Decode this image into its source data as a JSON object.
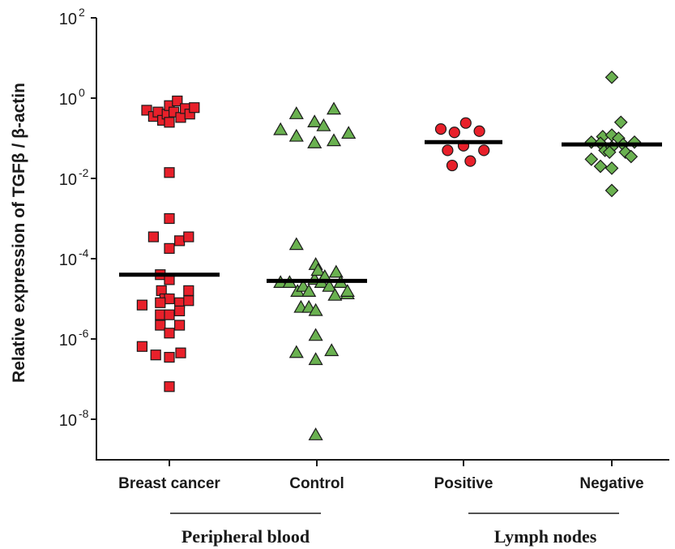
{
  "chart_data": {
    "type": "scatter",
    "ylabel": "Relative expression of TGFβ / β-actin",
    "y_scale": "log",
    "ylim": [
      1e-09,
      100.0
    ],
    "y_ticks": [
      {
        "exp": "2",
        "value": 100
      },
      {
        "exp": "0",
        "value": 1
      },
      {
        "exp": "-2",
        "value": 0.01
      },
      {
        "exp": "-4",
        "value": 0.0001
      },
      {
        "exp": "-6",
        "value": 1e-06
      },
      {
        "exp": "-8",
        "value": 1e-08
      }
    ],
    "y_tick_base": "10",
    "groups": [
      "Peripheral blood",
      "Lymph nodes"
    ],
    "categories": [
      "Breast cancer",
      "Control",
      "Positive",
      "Negative"
    ],
    "series": [
      {
        "category": "Breast cancer",
        "group": "Peripheral blood",
        "marker": "square",
        "color": "#e8202a",
        "median": 4e-05,
        "points": [
          {
            "dx": -1.0,
            "y": 0.5
          },
          {
            "dx": -0.7,
            "y": 0.35
          },
          {
            "dx": -0.5,
            "y": 0.45
          },
          {
            "dx": -0.3,
            "y": 0.28
          },
          {
            "dx": -0.1,
            "y": 0.4
          },
          {
            "dx": 0.0,
            "y": 0.65
          },
          {
            "dx": 0.0,
            "y": 0.25
          },
          {
            "dx": 0.2,
            "y": 0.45
          },
          {
            "dx": 0.35,
            "y": 0.85
          },
          {
            "dx": 0.5,
            "y": 0.33
          },
          {
            "dx": 0.7,
            "y": 0.55
          },
          {
            "dx": 0.9,
            "y": 0.4
          },
          {
            "dx": 1.1,
            "y": 0.58
          },
          {
            "dx": 0.0,
            "y": 0.014
          },
          {
            "dx": 0.0,
            "y": 0.001
          },
          {
            "dx": -0.7,
            "y": 0.00035
          },
          {
            "dx": 0.0,
            "y": 0.00018
          },
          {
            "dx": 0.45,
            "y": 0.00028
          },
          {
            "dx": 0.85,
            "y": 0.00035
          },
          {
            "dx": -0.4,
            "y": 4e-05
          },
          {
            "dx": 0.0,
            "y": 3e-05
          },
          {
            "dx": -0.35,
            "y": 1.6e-05
          },
          {
            "dx": 0.85,
            "y": 1.6e-05
          },
          {
            "dx": -0.2,
            "y": 1e-05
          },
          {
            "dx": 0.0,
            "y": 1e-05
          },
          {
            "dx": -1.2,
            "y": 7e-06
          },
          {
            "dx": -0.4,
            "y": 8e-06
          },
          {
            "dx": 0.45,
            "y": 8e-06
          },
          {
            "dx": 0.85,
            "y": 9e-06
          },
          {
            "dx": -0.4,
            "y": 4e-06
          },
          {
            "dx": 0.0,
            "y": 4e-06
          },
          {
            "dx": 0.45,
            "y": 5e-06
          },
          {
            "dx": -0.4,
            "y": 2.2e-06
          },
          {
            "dx": 0.45,
            "y": 2.2e-06
          },
          {
            "dx": 0.0,
            "y": 1.4e-06
          },
          {
            "dx": -1.2,
            "y": 6.5e-07
          },
          {
            "dx": -0.6,
            "y": 4e-07
          },
          {
            "dx": 0.0,
            "y": 3.5e-07
          },
          {
            "dx": 0.5,
            "y": 4.5e-07
          },
          {
            "dx": 0.0,
            "y": 6.5e-08
          }
        ]
      },
      {
        "category": "Control",
        "group": "Peripheral blood",
        "marker": "triangle",
        "color": "#6ab150",
        "median": 2.8e-05,
        "points": [
          {
            "dx": -1.6,
            "y": 0.16
          },
          {
            "dx": -0.9,
            "y": 0.11
          },
          {
            "dx": -0.9,
            "y": 0.4
          },
          {
            "dx": -0.1,
            "y": 0.25
          },
          {
            "dx": 0.3,
            "y": 0.2
          },
          {
            "dx": -0.1,
            "y": 0.075
          },
          {
            "dx": 0.75,
            "y": 0.085
          },
          {
            "dx": 0.75,
            "y": 0.52
          },
          {
            "dx": 1.4,
            "y": 0.13
          },
          {
            "dx": -0.9,
            "y": 0.00022
          },
          {
            "dx": -1.6,
            "y": 2.5e-05
          },
          {
            "dx": -1.2,
            "y": 2.5e-05
          },
          {
            "dx": -0.85,
            "y": 1.5e-05
          },
          {
            "dx": -0.6,
            "y": 2e-05
          },
          {
            "dx": -0.35,
            "y": 1.5e-05
          },
          {
            "dx": -0.1,
            "y": 3e-05
          },
          {
            "dx": -0.05,
            "y": 7e-05
          },
          {
            "dx": 0.05,
            "y": 5e-05
          },
          {
            "dx": 0.2,
            "y": 2.5e-05
          },
          {
            "dx": 0.35,
            "y": 3.5e-05
          },
          {
            "dx": 0.55,
            "y": 2e-05
          },
          {
            "dx": 0.8,
            "y": 1.2e-05
          },
          {
            "dx": 0.85,
            "y": 4.5e-05
          },
          {
            "dx": 1.05,
            "y": 2.5e-05
          },
          {
            "dx": 1.35,
            "y": 1.3e-05
          },
          {
            "dx": 1.35,
            "y": 1.5e-05
          },
          {
            "dx": -0.7,
            "y": 6e-06
          },
          {
            "dx": -0.35,
            "y": 6e-06
          },
          {
            "dx": -0.05,
            "y": 5e-06
          },
          {
            "dx": -0.05,
            "y": 1.2e-06
          },
          {
            "dx": -0.9,
            "y": 4.5e-07
          },
          {
            "dx": -0.05,
            "y": 3e-07
          },
          {
            "dx": 0.65,
            "y": 5e-07
          },
          {
            "dx": -0.05,
            "y": 4e-09
          }
        ]
      },
      {
        "category": "Positive",
        "group": "Lymph nodes",
        "marker": "circle",
        "color": "#e8202a",
        "median": 0.08,
        "points": [
          {
            "dx": -1.0,
            "y": 0.17
          },
          {
            "dx": -0.4,
            "y": 0.14
          },
          {
            "dx": 0.1,
            "y": 0.24
          },
          {
            "dx": 0.7,
            "y": 0.15
          },
          {
            "dx": -0.7,
            "y": 0.05
          },
          {
            "dx": 0.0,
            "y": 0.065
          },
          {
            "dx": 0.9,
            "y": 0.05
          },
          {
            "dx": -0.5,
            "y": 0.021
          },
          {
            "dx": 0.3,
            "y": 0.027
          }
        ]
      },
      {
        "category": "Negative",
        "group": "Lymph nodes",
        "marker": "diamond",
        "color": "#6ab150",
        "median": 0.07,
        "points": [
          {
            "dx": 0.0,
            "y": 3.3
          },
          {
            "dx": 0.4,
            "y": 0.25
          },
          {
            "dx": -0.4,
            "y": 0.11
          },
          {
            "dx": 0.0,
            "y": 0.12
          },
          {
            "dx": 0.3,
            "y": 0.1
          },
          {
            "dx": -0.9,
            "y": 0.08
          },
          {
            "dx": -0.5,
            "y": 0.075
          },
          {
            "dx": 0.5,
            "y": 0.07
          },
          {
            "dx": 1.0,
            "y": 0.08
          },
          {
            "dx": -0.3,
            "y": 0.05
          },
          {
            "dx": 0.0,
            "y": 0.06
          },
          {
            "dx": -0.1,
            "y": 0.045
          },
          {
            "dx": 0.6,
            "y": 0.045
          },
          {
            "dx": -0.9,
            "y": 0.03
          },
          {
            "dx": 0.85,
            "y": 0.035
          },
          {
            "dx": -0.5,
            "y": 0.02
          },
          {
            "dx": 0.0,
            "y": 0.018
          },
          {
            "dx": 0.0,
            "y": 0.005
          }
        ]
      }
    ]
  }
}
